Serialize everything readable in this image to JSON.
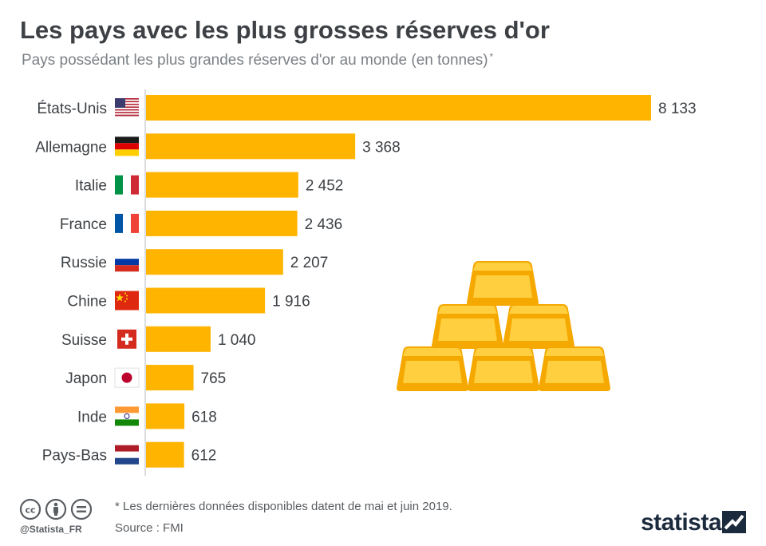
{
  "header": {
    "title": "Les pays avec les plus grosses réserves d'or",
    "subtitle": "Pays possédant les plus grandes réserves d'or au monde (en tonnes)",
    "subtitle_mark": "*"
  },
  "chart_data": {
    "type": "bar",
    "orientation": "horizontal",
    "title": "Les pays avec les plus grosses réserves d'or",
    "subtitle": "Pays possédant les plus grandes réserves d'or au monde (en tonnes)",
    "xlabel": "",
    "ylabel": "",
    "categories": [
      "États-Unis",
      "Allemagne",
      "Italie",
      "France",
      "Russie",
      "Chine",
      "Suisse",
      "Japon",
      "Inde",
      "Pays-Bas"
    ],
    "values": [
      8133,
      3368,
      2452,
      2436,
      2207,
      1916,
      1040,
      765,
      618,
      612
    ],
    "value_labels": [
      "8 133",
      "3 368",
      "2 452",
      "2 436",
      "2 207",
      "1 916",
      "1 040",
      "765",
      "618",
      "612"
    ],
    "flags": [
      "us-flag-icon",
      "de-flag-icon",
      "it-flag-icon",
      "fr-flag-icon",
      "ru-flag-icon",
      "cn-flag-icon",
      "ch-flag-icon",
      "jp-flag-icon",
      "in-flag-icon",
      "nl-flag-icon"
    ],
    "xlim": [
      0,
      8133
    ],
    "grid": false,
    "legend": "none",
    "bar_color": "#ffb400"
  },
  "footer": {
    "footnote": "* Les dernières données disponibles datent de mai et juin 2019.",
    "source": "Source : FMI",
    "handle": "@Statista_FR",
    "license_icons": [
      "cc-icon",
      "by-icon",
      "nd-icon"
    ],
    "logo": "statista"
  },
  "colors": {
    "title": "#3d4145",
    "subtitle": "#7c8186",
    "bar": "#ffb400",
    "gold_light": "#ffcf3f",
    "gold_dark": "#f5a800",
    "logo": "#1b2a3d"
  },
  "decoration": {
    "illustration": "gold-bars-stack-icon"
  }
}
